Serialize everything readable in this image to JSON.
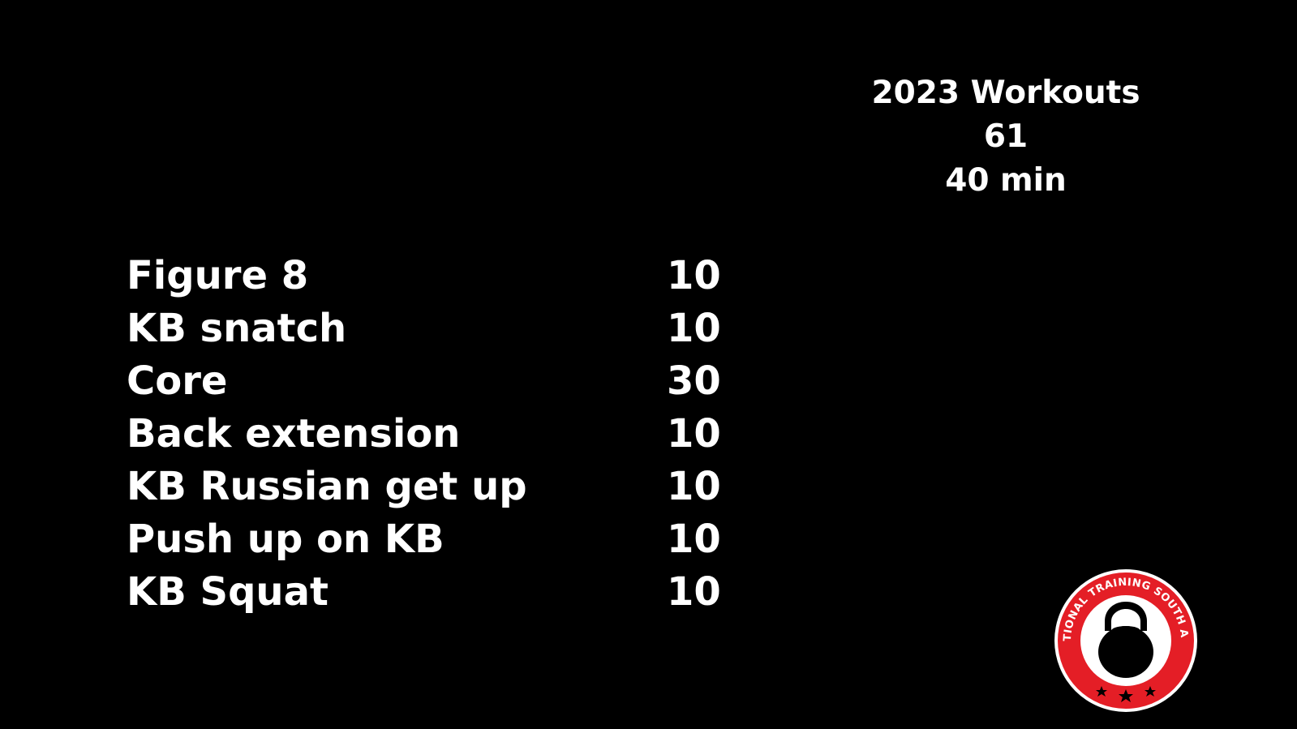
{
  "header": {
    "title": "2023 Workouts",
    "number": "61",
    "duration": "40 min"
  },
  "exercises": [
    {
      "name": "Figure 8",
      "reps": "10"
    },
    {
      "name": "KB snatch",
      "reps": "10"
    },
    {
      "name": "Core",
      "reps": "30"
    },
    {
      "name": "Back extension",
      "reps": "10"
    },
    {
      "name": "KB Russian get up",
      "reps": "10"
    },
    {
      "name": "Push up on KB",
      "reps": "10"
    },
    {
      "name": "KB Squat",
      "reps": "10"
    }
  ],
  "logo": {
    "text": "FUNCTIONAL TRAINING SOUTH AFRICA",
    "icon": "kettlebell-icon",
    "colors": {
      "ring": "#e41e26",
      "inner": "#ffffff",
      "kettlebell": "#000000",
      "background": "#000000",
      "text": "#ffffff"
    }
  }
}
